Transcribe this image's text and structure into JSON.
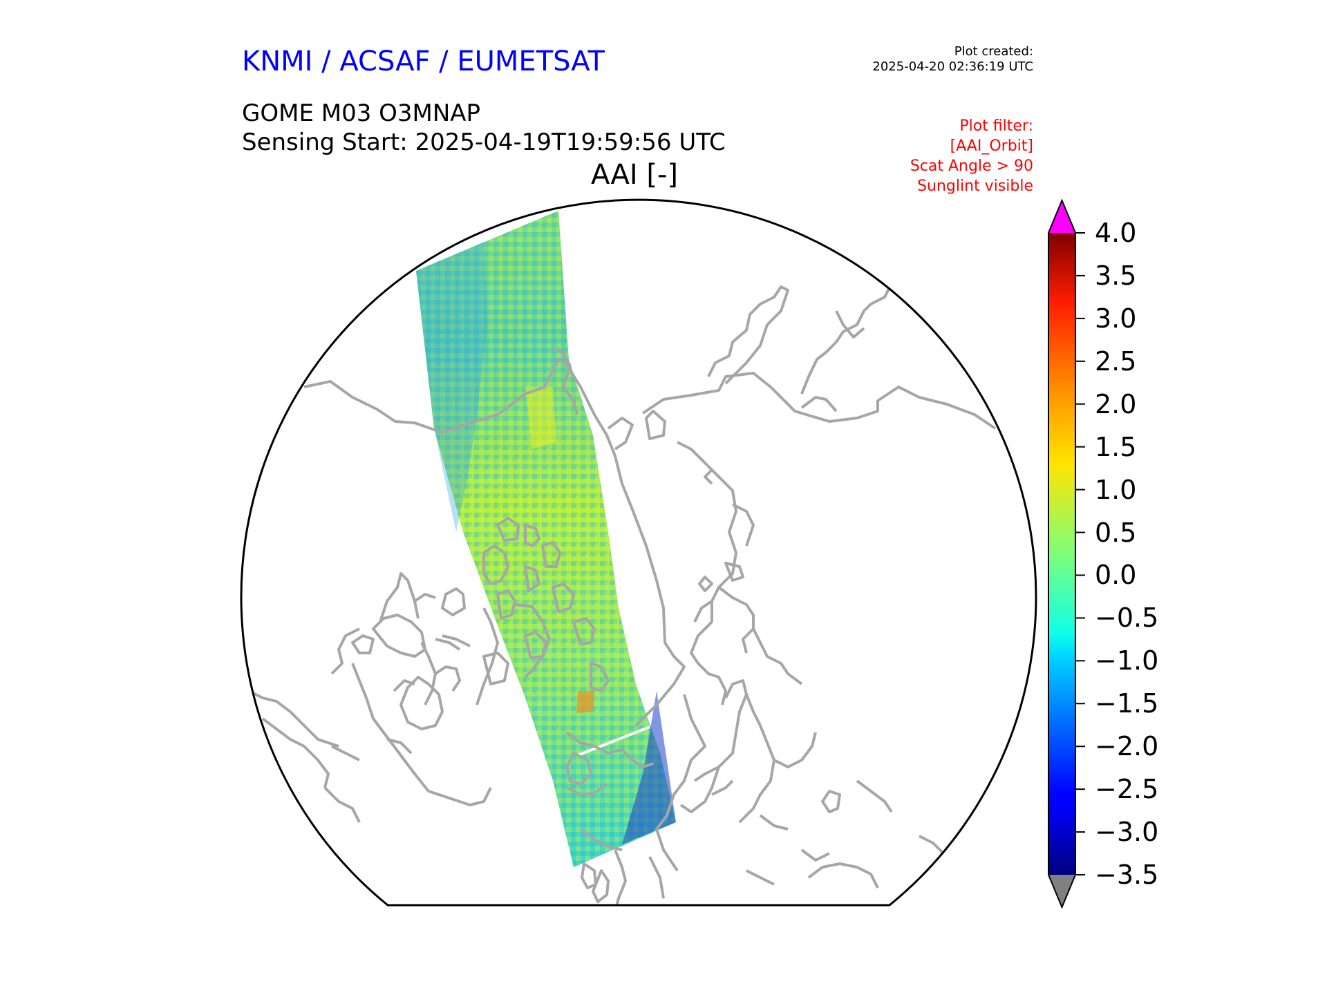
{
  "header": {
    "organisation": "KNMI / ACSAF / EUMETSAT",
    "plot_created_label": "Plot created:",
    "plot_created_time": "2025-04-20 02:36:19 UTC",
    "product": "GOME M03 O3MNAP",
    "sensing_start": "Sensing Start: 2025-04-19T19:59:56 UTC",
    "variable": "AAI [-]"
  },
  "plot_filter": {
    "label": "Plot filter:",
    "lines": [
      "[AAI_Orbit]",
      "Scat Angle > 90",
      "Sunglint visible"
    ]
  },
  "colorbar": {
    "min": -3.5,
    "max": 4.0,
    "ticks": [
      "4.0",
      "3.5",
      "3.0",
      "2.5",
      "2.0",
      "1.5",
      "1.0",
      "0.5",
      "0.0",
      "−0.5",
      "−1.0",
      "−1.5",
      "−2.0",
      "−2.5",
      "−3.0",
      "−3.5"
    ],
    "over_color": "#ff00ff",
    "under_color": "#808080",
    "colormap": "jet"
  },
  "map": {
    "projection": "north polar stereographic",
    "coastline_color": "#a6a6a6",
    "boundary_color": "#000000"
  }
}
